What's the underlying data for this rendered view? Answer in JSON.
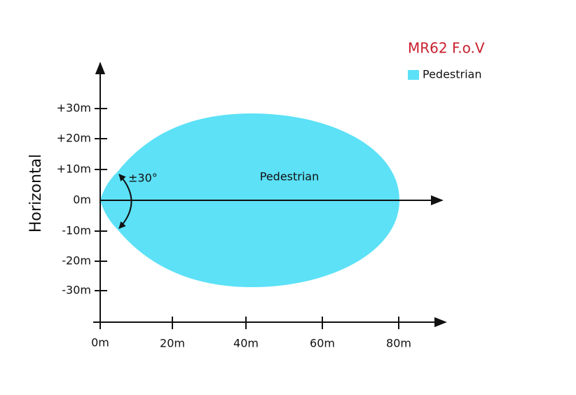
{
  "title": "MR62  F.o.V",
  "legend": {
    "label": "Pedestrian"
  },
  "y_axis": {
    "title": "Horizontal",
    "ticks": [
      "+30m",
      "+20m",
      "+10m",
      "0m",
      "-10m",
      "-20m",
      "-30m"
    ]
  },
  "x_axis": {
    "ticks": [
      "0m",
      "20m",
      "40m",
      "60m",
      "80m"
    ]
  },
  "annotations": {
    "angle": "±30°",
    "region": "Pedestrian"
  }
}
